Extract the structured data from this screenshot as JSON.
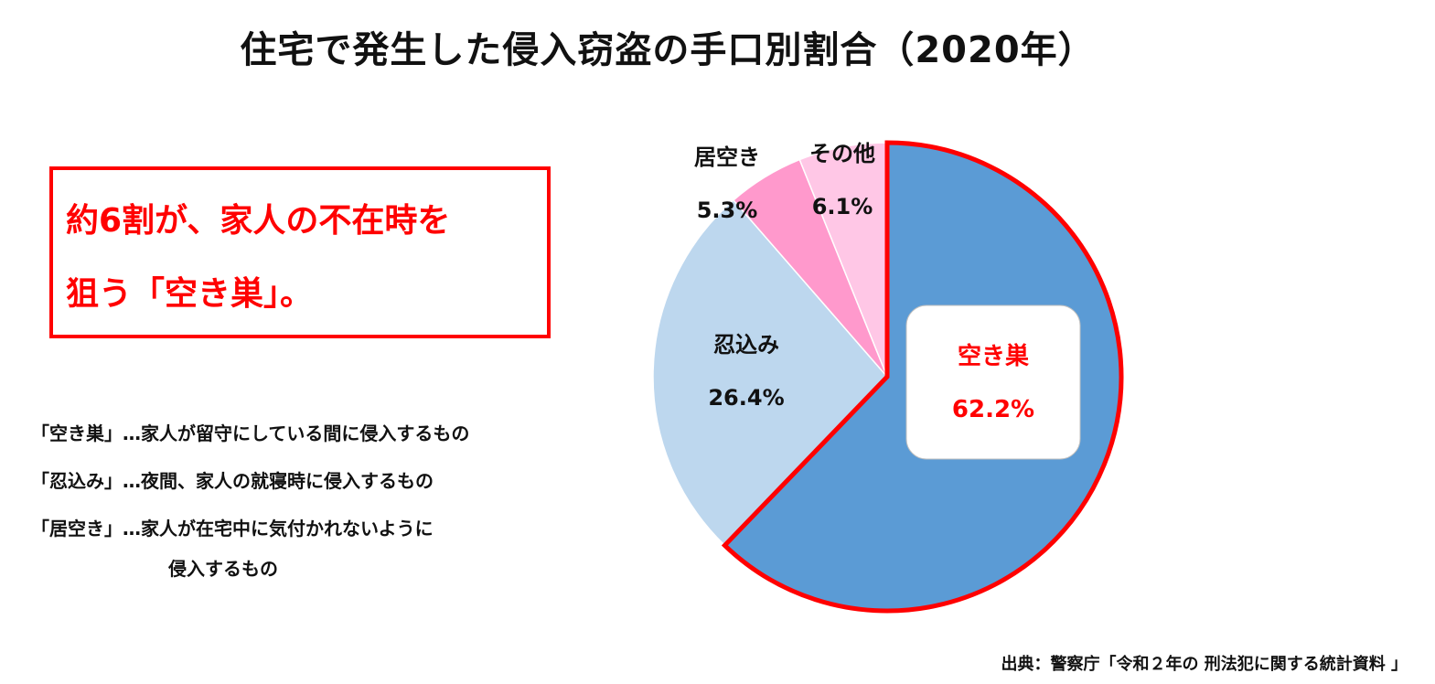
{
  "title": "住宅で発生した侵入窃盗の手口別割合（2020年）",
  "callout": {
    "line1": "約6割が、家人の不在時を",
    "line2": "狙う「空き巣」。"
  },
  "definitions": [
    {
      "term": "「空き巣」",
      "text": "…家人が留守にしている間に侵入するもの"
    },
    {
      "term": "「忍込み」",
      "text": "…夜間、家人の就寝時に侵入するもの"
    },
    {
      "term": "「居空き」",
      "text": "…家人が在宅中に気付かれないように"
    },
    {
      "term": "",
      "text": "侵入するもの"
    }
  ],
  "source": "出典：警察庁「令和２年の 刑法犯に関する統計資料 」",
  "colors": {
    "accent": "#ff0000",
    "akisu": "#5b9bd5",
    "shinobikomi": "#bdd7ee",
    "iaki": "#ff99cc",
    "other": "#ffc7e6"
  },
  "chart_data": {
    "type": "pie",
    "title": "住宅で発生した侵入窃盗の手口別割合（2020年）",
    "start": "12 o'clock",
    "direction": "clockwise",
    "slices": [
      {
        "label": "空き巣",
        "value": 62.2,
        "display": "62.2%",
        "color": "#5b9bd5",
        "highlight": true
      },
      {
        "label": "忍込み",
        "value": 26.4,
        "display": "26.4%",
        "color": "#bdd7ee"
      },
      {
        "label": "居空き",
        "value": 5.3,
        "display": "5.3%",
        "color": "#ff99cc"
      },
      {
        "label": "その他",
        "value": 6.1,
        "display": "6.1%",
        "color": "#ffc7e6"
      }
    ]
  }
}
